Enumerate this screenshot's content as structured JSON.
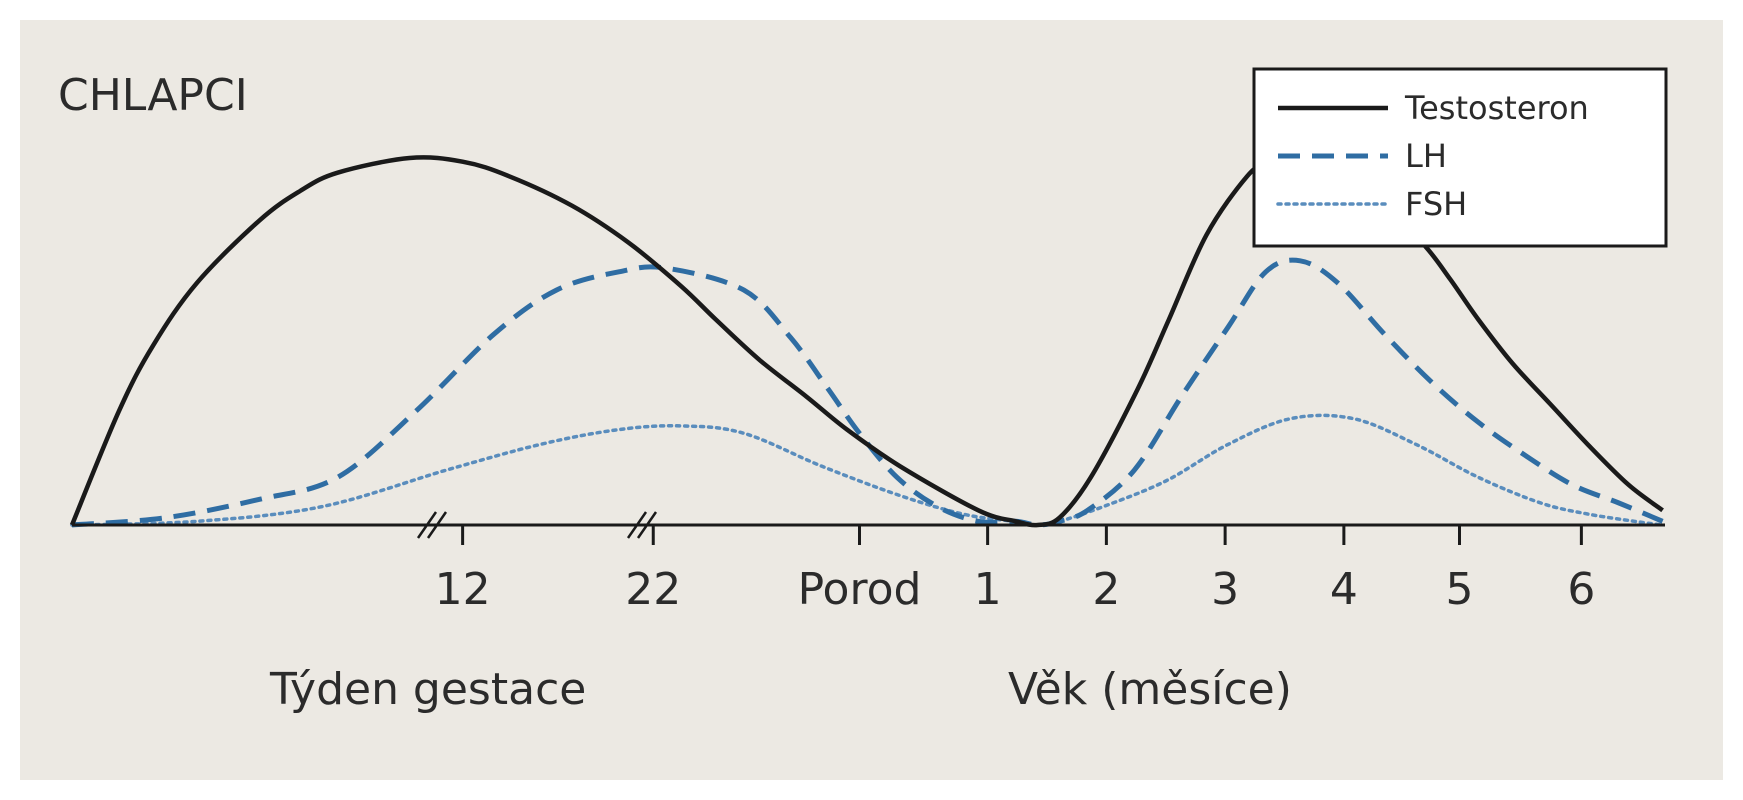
{
  "chart_data": {
    "type": "line",
    "title": "CHLAPCI",
    "x_ticks": [
      "12",
      "22",
      "Porod",
      "1",
      "2",
      "3",
      "4",
      "5",
      "6"
    ],
    "xlabel_left": "Týden gestace",
    "xlabel_right": "Věk (měsíce)",
    "y_range": [
      0,
      1
    ],
    "grid": false,
    "legend_position": "top-right",
    "series": [
      {
        "name": "Testosteron",
        "style": "solid",
        "color": "#1a1a1a",
        "x": [
          0,
          1.5,
          2.6,
          4,
          6,
          7.3,
          8.5,
          10.8,
          12.5,
          14,
          16,
          17.8,
          19.5,
          20.6,
          22,
          23.5,
          24.8,
          26.5,
          29,
          30.2,
          30.9,
          31.6,
          32.6,
          34.1,
          35.1,
          36.3,
          37.6,
          38.3,
          39,
          40.3,
          41.2,
          42.2,
          43.3,
          44.1,
          45,
          46.1,
          47.3,
          48.5,
          49.8,
          50.9
        ],
        "y": [
          0.0,
          0.31,
          0.49,
          0.66,
          0.83,
          0.91,
          0.96,
          1.0,
          0.99,
          0.95,
          0.87,
          0.77,
          0.65,
          0.56,
          0.45,
          0.35,
          0.26,
          0.16,
          0.04,
          0.01,
          0.0,
          0.02,
          0.13,
          0.37,
          0.56,
          0.79,
          0.95,
          0.99,
          1.0,
          0.97,
          0.92,
          0.85,
          0.76,
          0.67,
          0.56,
          0.44,
          0.33,
          0.22,
          0.11,
          0.04
        ]
      },
      {
        "name": "LH",
        "style": "dashed",
        "color": "#2f6da3",
        "x": [
          0,
          3,
          6,
          8.5,
          11,
          13.5,
          15.5,
          17.5,
          19,
          21.5,
          23,
          24.2,
          25.2,
          26.4,
          27.7,
          29,
          30.2,
          30.9,
          31.6,
          32.5,
          34,
          35.5,
          37,
          38.2,
          39.3,
          40.5,
          42,
          43.5,
          45,
          46.5,
          48,
          49.5,
          50.9
        ],
        "y": [
          0.0,
          0.02,
          0.07,
          0.13,
          0.31,
          0.52,
          0.64,
          0.69,
          0.7,
          0.64,
          0.51,
          0.37,
          0.25,
          0.13,
          0.05,
          0.01,
          0.01,
          0.0,
          0.01,
          0.04,
          0.15,
          0.35,
          0.54,
          0.69,
          0.72,
          0.66,
          0.52,
          0.39,
          0.28,
          0.19,
          0.11,
          0.06,
          0.01
        ]
      },
      {
        "name": "FSH",
        "style": "dotted",
        "color": "#5a8dbd",
        "x": [
          0,
          4,
          8,
          12,
          15,
          17.5,
          19.5,
          21.5,
          24,
          26.5,
          28.5,
          30.1,
          30.9,
          31.6,
          33,
          35,
          37,
          39,
          41,
          43,
          45,
          47,
          48.5,
          50,
          50.9
        ],
        "y": [
          0.0,
          0.01,
          0.05,
          0.15,
          0.22,
          0.26,
          0.27,
          0.25,
          0.16,
          0.08,
          0.03,
          0.01,
          0.0,
          0.01,
          0.05,
          0.12,
          0.22,
          0.29,
          0.29,
          0.22,
          0.13,
          0.06,
          0.03,
          0.01,
          0.0
        ]
      }
    ]
  }
}
